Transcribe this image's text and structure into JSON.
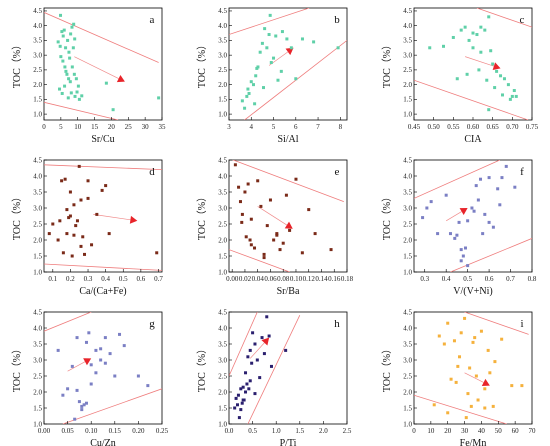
{
  "chart_data": [
    {
      "type": "scatter",
      "panel_label": "a",
      "xlabel": "Sr/Cu",
      "ylabel": "TOC（%）",
      "xlim": [
        0,
        35
      ],
      "ylim": [
        0.8,
        4.6
      ],
      "xticks": [
        0,
        5,
        10,
        15,
        20,
        25,
        30,
        35
      ],
      "yticks": [
        1.0,
        1.5,
        2.0,
        2.5,
        3.0,
        3.5,
        4.0,
        4.5
      ],
      "colors": {
        "marker": "#5fd0a8",
        "line": "#ef7d7d",
        "arrow": "#e8242a"
      },
      "x": [
        4.2,
        4.8,
        5.3,
        5.7,
        6.0,
        6.4,
        7.0,
        7.4,
        7.9,
        8.3,
        8.7,
        9.1,
        5.0,
        5.6,
        6.2,
        6.8,
        7.3,
        7.8,
        8.4,
        9.0,
        9.6,
        10.2,
        4.6,
        5.4,
        6.1,
        7.2,
        8.1,
        9.2,
        10.5,
        11.2,
        6.5,
        7.6,
        9.8,
        18.5,
        20.5,
        34.0,
        4.9,
        8.8
      ],
      "y": [
        3.45,
        3.3,
        3.8,
        3.65,
        3.85,
        3.25,
        3.5,
        3.1,
        3.72,
        3.95,
        3.25,
        3.55,
        2.95,
        2.8,
        2.6,
        2.35,
        2.2,
        2.1,
        2.6,
        2.35,
        2.2,
        1.95,
        1.85,
        1.7,
        1.95,
        1.55,
        1.72,
        1.6,
        1.5,
        1.62,
        2.45,
        2.9,
        1.75,
        2.05,
        1.15,
        1.55,
        4.35,
        4.05
      ],
      "lines": [
        [
          [
            0,
            4.45
          ],
          [
            34,
            2.75
          ]
        ],
        [
          [
            0,
            1.4
          ],
          [
            22,
            0.8
          ]
        ]
      ],
      "arrow": [
        [
          9,
          2.95
        ],
        [
          24,
          2.1
        ]
      ]
    },
    {
      "type": "scatter",
      "panel_label": "b",
      "xlabel": "Si/Al",
      "ylabel": "TOC（%）",
      "xlim": [
        3,
        8.3
      ],
      "ylim": [
        0.8,
        4.6
      ],
      "xticks": [
        3,
        4,
        5,
        6,
        7,
        8
      ],
      "yticks": [
        1.0,
        1.5,
        2.0,
        2.5,
        3.0,
        3.5,
        4.0,
        4.5
      ],
      "colors": {
        "marker": "#5fd0a8",
        "line": "#ef7d7d",
        "arrow": "#e8242a"
      },
      "x": [
        3.6,
        3.7,
        3.8,
        3.9,
        4.0,
        4.1,
        4.2,
        4.3,
        4.4,
        4.5,
        4.6,
        4.7,
        4.8,
        4.9,
        5.0,
        5.1,
        5.2,
        5.4,
        5.6,
        5.8,
        6.0,
        6.3,
        6.8,
        7.9,
        4.15,
        4.55,
        4.85,
        3.85,
        4.25,
        5.35
      ],
      "y": [
        1.45,
        1.2,
        1.6,
        1.7,
        2.1,
        2.0,
        2.3,
        2.6,
        3.1,
        3.4,
        3.9,
        3.25,
        3.7,
        2.75,
        2.9,
        3.65,
        2.15,
        3.8,
        3.55,
        3.25,
        2.2,
        3.55,
        3.45,
        3.25,
        1.35,
        1.9,
        4.35,
        1.85,
        2.55,
        2.45
      ],
      "lines": [
        [
          [
            3,
            3.7
          ],
          [
            6.6,
            4.6
          ]
        ],
        [
          [
            3.7,
            0.8
          ],
          [
            8.3,
            3.5
          ]
        ]
      ],
      "arrow": [
        [
          4.8,
          2.65
        ],
        [
          5.9,
          3.25
        ]
      ]
    },
    {
      "type": "scatter",
      "panel_label": "c",
      "xlabel": "CIA",
      "ylabel": "TOC（%）",
      "xlim": [
        0.45,
        0.75
      ],
      "ylim": [
        0.8,
        4.6
      ],
      "xticks": [
        0.45,
        0.5,
        0.55,
        0.6,
        0.65,
        0.7,
        0.75
      ],
      "yticks": [
        1.0,
        1.5,
        2.0,
        2.5,
        3.0,
        3.5,
        4.0,
        4.5
      ],
      "colors": {
        "marker": "#5fd0a8",
        "line": "#ef7d7d",
        "arrow": "#e8242a"
      },
      "x": [
        0.49,
        0.525,
        0.55,
        0.57,
        0.58,
        0.59,
        0.6,
        0.61,
        0.62,
        0.63,
        0.64,
        0.645,
        0.65,
        0.66,
        0.67,
        0.68,
        0.69,
        0.7,
        0.705,
        0.71,
        0.56,
        0.585,
        0.615,
        0.635,
        0.655,
        0.675,
        0.695,
        0.6,
        0.62,
        0.64
      ],
      "y": [
        3.25,
        3.3,
        3.6,
        3.85,
        3.95,
        3.5,
        3.25,
        3.7,
        3.1,
        3.85,
        4.3,
        3.15,
        2.7,
        2.45,
        2.3,
        2.2,
        2.0,
        1.6,
        1.8,
        1.6,
        2.2,
        2.35,
        2.5,
        2.15,
        1.9,
        1.65,
        1.5,
        3.75,
        3.95,
        1.15
      ],
      "lines": [
        [
          [
            0.45,
            2.15
          ],
          [
            0.74,
            0.8
          ]
        ],
        [
          [
            0.61,
            4.6
          ],
          [
            0.75,
            3.95
          ]
        ]
      ],
      "arrow": [
        [
          0.58,
          2.95
        ],
        [
          0.67,
          2.55
        ]
      ]
    },
    {
      "type": "scatter",
      "panel_label": "d",
      "xlabel": "Ca/(Ca+Fe)",
      "ylabel": "TOC（%）",
      "xlim": [
        0.05,
        0.72
      ],
      "ylim": [
        1.0,
        4.5
      ],
      "xticks": [
        0.1,
        0.2,
        0.3,
        0.4,
        0.5,
        0.6,
        0.7
      ],
      "yticks": [
        1.0,
        1.5,
        2.0,
        2.5,
        3.0,
        3.5,
        4.0,
        4.5
      ],
      "colors": {
        "marker": "#7a2a18",
        "line": "#ef7d7d",
        "arrow": "#e8242a"
      },
      "x": [
        0.08,
        0.1,
        0.13,
        0.15,
        0.16,
        0.17,
        0.18,
        0.19,
        0.2,
        0.21,
        0.22,
        0.23,
        0.24,
        0.25,
        0.26,
        0.27,
        0.28,
        0.3,
        0.32,
        0.35,
        0.38,
        0.4,
        0.42,
        0.69,
        0.14,
        0.18,
        0.22,
        0.26,
        0.3,
        0.2
      ],
      "y": [
        2.2,
        2.5,
        2.0,
        3.85,
        1.6,
        3.9,
        2.2,
        2.7,
        3.5,
        1.5,
        3.1,
        2.45,
        2.6,
        4.3,
        3.25,
        2.1,
        1.55,
        3.85,
        1.85,
        2.8,
        3.55,
        3.7,
        2.2,
        1.6,
        2.6,
        2.95,
        2.15,
        1.8,
        3.3,
        2.75
      ],
      "lines": [
        [
          [
            0.05,
            4.35
          ],
          [
            0.72,
            4.2
          ]
        ],
        [
          [
            0.05,
            1.25
          ],
          [
            0.72,
            1.05
          ]
        ]
      ],
      "arrow": [
        [
          0.33,
          2.8
        ],
        [
          0.58,
          2.6
        ]
      ]
    },
    {
      "type": "scatter",
      "panel_label": "e",
      "xlabel": "Sr/Ba",
      "ylabel": "TOC（%）",
      "xlim": [
        -0.005,
        0.18
      ],
      "ylim": [
        1.0,
        4.5
      ],
      "xticks": [
        0.0,
        0.02,
        0.04,
        0.06,
        0.08,
        0.1,
        0.12,
        0.14,
        0.16,
        0.18
      ],
      "yticks": [
        1.0,
        1.5,
        2.0,
        2.5,
        3.0,
        3.5,
        4.0,
        4.5
      ],
      "colors": {
        "marker": "#7a2a18",
        "line": "#ef7d7d",
        "arrow": "#e8242a"
      },
      "x": [
        0.005,
        0.01,
        0.013,
        0.016,
        0.02,
        0.022,
        0.025,
        0.028,
        0.03,
        0.035,
        0.04,
        0.045,
        0.05,
        0.055,
        0.06,
        0.065,
        0.07,
        0.075,
        0.08,
        0.085,
        0.09,
        0.1,
        0.11,
        0.12,
        0.13,
        0.155,
        0.015,
        0.03,
        0.05,
        0.07
      ],
      "y": [
        4.35,
        3.65,
        3.2,
        2.8,
        3.5,
        2.1,
        3.75,
        2.0,
        2.65,
        1.75,
        3.85,
        3.05,
        1.45,
        2.45,
        3.25,
        2.0,
        2.2,
        1.7,
        1.9,
        3.4,
        2.3,
        3.9,
        1.6,
        2.95,
        2.2,
        1.7,
        2.55,
        1.85,
        1.55,
        2.15
      ],
      "lines": [
        [
          [
            -0.005,
            4.55
          ],
          [
            0.175,
            3.2
          ]
        ],
        [
          [
            -0.005,
            1.7
          ],
          [
            0.09,
            1.0
          ]
        ]
      ],
      "arrow": [
        [
          0.04,
          3.05
        ],
        [
          0.095,
          2.35
        ]
      ]
    },
    {
      "type": "scatter",
      "panel_label": "f",
      "xlabel": "V/(V+Ni)",
      "ylabel": "TOC（%）",
      "xlim": [
        0.25,
        0.8
      ],
      "ylim": [
        1.0,
        4.5
      ],
      "xticks": [
        0.3,
        0.4,
        0.5,
        0.6,
        0.7,
        0.8
      ],
      "yticks": [
        1.0,
        1.5,
        2.0,
        2.5,
        3.0,
        3.5,
        4.0,
        4.5
      ],
      "colors": {
        "marker": "#7b7fc4",
        "line": "#ef7d7d",
        "arrow": "#e8242a"
      },
      "x": [
        0.29,
        0.31,
        0.33,
        0.36,
        0.4,
        0.42,
        0.44,
        0.46,
        0.47,
        0.48,
        0.49,
        0.5,
        0.52,
        0.54,
        0.56,
        0.58,
        0.6,
        0.62,
        0.64,
        0.66,
        0.68,
        0.72,
        0.45,
        0.5,
        0.55,
        0.6,
        0.47,
        0.53,
        0.57,
        0.65
      ],
      "y": [
        2.7,
        3.0,
        3.2,
        2.2,
        3.4,
        2.2,
        2.05,
        2.55,
        1.7,
        1.5,
        1.75,
        2.6,
        3.0,
        3.7,
        3.9,
        2.8,
        3.95,
        2.4,
        3.6,
        3.95,
        4.3,
        3.65,
        2.15,
        1.2,
        3.25,
        2.55,
        1.35,
        2.9,
        2.2,
        3.1
      ],
      "lines": [
        [
          [
            0.25,
            3.3
          ],
          [
            0.65,
            4.5
          ]
        ],
        [
          [
            0.42,
            1.0
          ],
          [
            0.8,
            2.05
          ]
        ]
      ],
      "arrow": [
        [
          0.4,
          2.6
        ],
        [
          0.5,
          3.0
        ]
      ]
    },
    {
      "type": "scatter",
      "panel_label": "g",
      "xlabel": "Cu/Zn",
      "ylabel": "TOC（%）",
      "xlim": [
        0.0,
        0.25
      ],
      "ylim": [
        1.0,
        4.5
      ],
      "xticks": [
        0.0,
        0.05,
        0.1,
        0.15,
        0.2,
        0.25
      ],
      "yticks": [
        1.0,
        1.5,
        2.0,
        2.5,
        3.0,
        3.5,
        4.0,
        4.5
      ],
      "colors": {
        "marker": "#7b7fc4",
        "line": "#ef7d7d",
        "arrow": "#e8242a"
      },
      "x": [
        0.03,
        0.04,
        0.05,
        0.06,
        0.065,
        0.07,
        0.075,
        0.08,
        0.085,
        0.09,
        0.095,
        0.1,
        0.11,
        0.12,
        0.13,
        0.14,
        0.15,
        0.16,
        0.17,
        0.2,
        0.22,
        0.07,
        0.09,
        0.11,
        0.13,
        0.08,
        0.1,
        0.12
      ],
      "y": [
        3.3,
        1.9,
        2.1,
        2.8,
        1.15,
        2.05,
        1.7,
        1.45,
        1.6,
        3.55,
        3.85,
        2.85,
        3.3,
        3.0,
        3.7,
        3.2,
        2.5,
        3.8,
        3.45,
        2.5,
        2.2,
        3.7,
        1.65,
        2.6,
        2.9,
        1.55,
        2.25,
        3.35
      ],
      "lines": [
        [
          [
            0.0,
            3.9
          ],
          [
            0.1,
            4.5
          ]
        ],
        [
          [
            0.04,
            1.0
          ],
          [
            0.25,
            2.1
          ]
        ]
      ],
      "arrow": [
        [
          0.05,
          2.65
        ],
        [
          0.1,
          3.05
        ]
      ]
    },
    {
      "type": "scatter",
      "panel_label": "h",
      "xlabel": "P/Ti",
      "ylabel": "TOC（%）",
      "xlim": [
        0.0,
        2.5
      ],
      "ylim": [
        1.0,
        4.5
      ],
      "xticks": [
        0.0,
        0.5,
        1.0,
        1.5,
        2.0,
        2.5
      ],
      "yticks": [
        1.0,
        1.5,
        2.0,
        2.5,
        3.0,
        3.5,
        4.0,
        4.5
      ],
      "colors": {
        "marker": "#2a1f6e",
        "line": "#ef7d7d",
        "arrow": "#e8242a"
      },
      "x": [
        0.12,
        0.15,
        0.18,
        0.2,
        0.22,
        0.25,
        0.28,
        0.3,
        0.32,
        0.35,
        0.38,
        0.4,
        0.42,
        0.45,
        0.48,
        0.5,
        0.55,
        0.6,
        0.65,
        0.7,
        0.75,
        0.8,
        0.85,
        0.9,
        1.2,
        0.25,
        0.35,
        0.45,
        0.55,
        0.3
      ],
      "y": [
        1.5,
        1.8,
        1.6,
        1.9,
        1.2,
        2.1,
        1.65,
        2.15,
        1.75,
        2.6,
        2.25,
        3.1,
        2.1,
        3.3,
        2.9,
        3.85,
        3.5,
        3.0,
        2.45,
        3.7,
        3.2,
        4.35,
        3.75,
        2.8,
        3.3,
        1.45,
        2.0,
        2.35,
        1.95,
        1.75
      ],
      "lines": [
        [
          [
            0.0,
            2.5
          ],
          [
            0.6,
            4.5
          ]
        ],
        [
          [
            0.4,
            1.0
          ],
          [
            1.5,
            4.4
          ]
        ]
      ],
      "arrow": [
        [
          0.45,
          3.05
        ],
        [
          0.85,
          3.7
        ]
      ]
    },
    {
      "type": "scatter",
      "panel_label": "i",
      "xlabel": "Fe/Mn",
      "ylabel": "TOC（%）",
      "xlim": [
        0,
        70
      ],
      "ylim": [
        1.0,
        4.5
      ],
      "xticks": [
        0,
        10,
        20,
        30,
        40,
        50,
        60,
        70
      ],
      "yticks": [
        1.0,
        1.5,
        2.0,
        2.5,
        3.0,
        3.5,
        4.0,
        4.5
      ],
      "colors": {
        "marker": "#f5b13c",
        "line": "#ef7d7d",
        "arrow": "#e8242a"
      },
      "x": [
        12,
        15,
        18,
        20,
        22,
        24,
        25,
        27,
        28,
        30,
        31,
        33,
        34,
        35,
        37,
        38,
        40,
        42,
        44,
        45,
        47,
        48,
        52,
        58,
        64,
        20,
        26,
        32,
        36,
        42
      ],
      "y": [
        1.6,
        3.75,
        3.5,
        4.15,
        2.4,
        3.6,
        2.3,
        3.1,
        3.85,
        4.3,
        1.2,
        2.75,
        1.55,
        3.55,
        2.5,
        1.75,
        3.9,
        2.1,
        3.3,
        2.6,
        1.55,
        2.95,
        3.65,
        2.2,
        2.2,
        1.35,
        2.8,
        1.95,
        3.7,
        1.5
      ],
      "lines": [
        [
          [
            30,
            4.5
          ],
          [
            68,
            3.8
          ]
        ],
        [
          [
            0,
            1.9
          ],
          [
            55,
            1.0
          ]
        ]
      ],
      "arrow": [
        [
          30,
          2.6
        ],
        [
          45,
          2.2
        ]
      ]
    }
  ]
}
